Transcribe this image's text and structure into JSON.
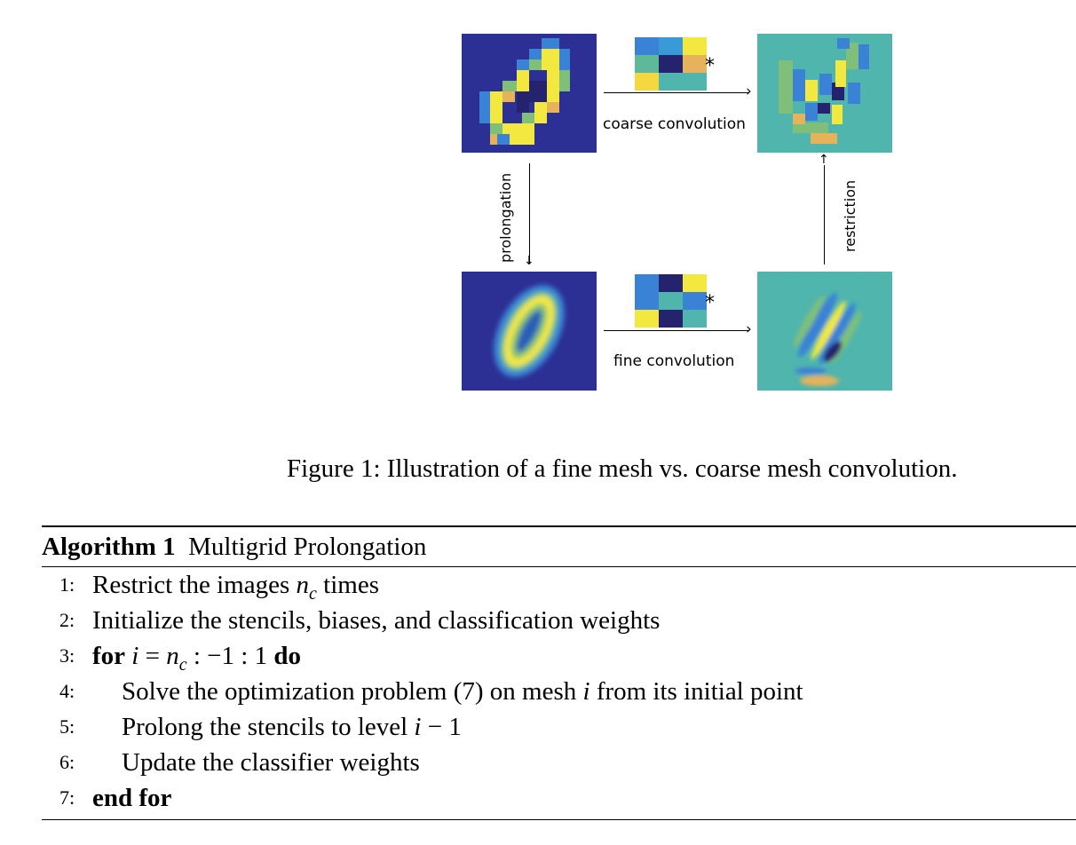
{
  "figure": {
    "top_label": "coarse convolution",
    "bottom_label": "fine convolution",
    "left_label": "prolongation",
    "right_label": "restriction",
    "star": "*",
    "caption": "Figure 1: Illustration of a fine mesh vs. coarse mesh convolution.",
    "colors": {
      "dark_blue": "#2c2f94",
      "blue": "#3a82d6",
      "teal": "#4fb5ad",
      "green": "#7fbf7a",
      "yellow": "#f3e840",
      "orange": "#e6b35a",
      "navy": "#25226e"
    }
  },
  "algorithm": {
    "title_bold": "Algorithm 1",
    "title": "Multigrid Prolongation",
    "lines": [
      {
        "num": "1:",
        "text": "Restrict the images n_c times"
      },
      {
        "num": "2:",
        "text": "Initialize the stencils, biases, and classification weights"
      },
      {
        "num": "3:",
        "text": "for i = n_c : −1 : 1 do"
      },
      {
        "num": "4:",
        "text": "Solve the optimization problem (7) on mesh i from its initial point"
      },
      {
        "num": "5:",
        "text": "Prolong the stencils to level i − 1"
      },
      {
        "num": "6:",
        "text": "Update the classifier weights"
      },
      {
        "num": "7:",
        "text": "end for"
      }
    ]
  }
}
